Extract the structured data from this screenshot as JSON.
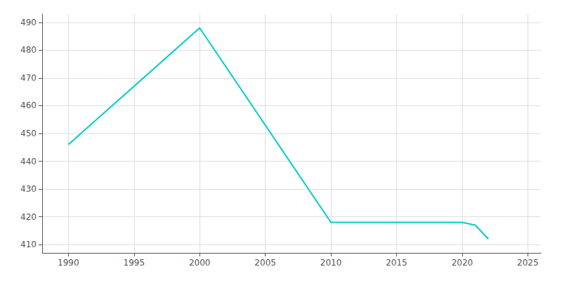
{
  "chart_data": {
    "type": "line",
    "x": [
      1990,
      2000,
      2010,
      2020,
      2021,
      2022
    ],
    "values": [
      446,
      488,
      418,
      418,
      417,
      412
    ],
    "color": "#00CCCC",
    "xlim": [
      1988,
      2026
    ],
    "ylim": [
      407,
      493
    ],
    "xticks": [
      1990,
      1995,
      2000,
      2005,
      2010,
      2015,
      2020,
      2025
    ],
    "yticks": [
      410,
      420,
      430,
      440,
      450,
      460,
      470,
      480,
      490
    ],
    "grid": true
  }
}
